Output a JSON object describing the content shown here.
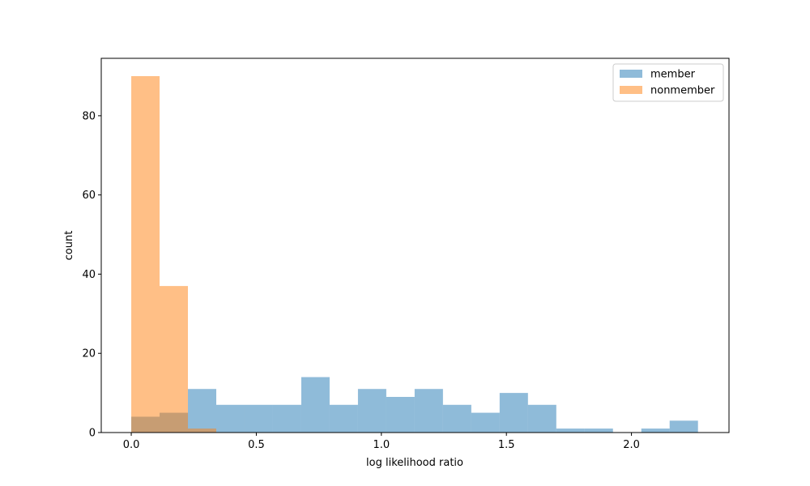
{
  "chart_data": {
    "type": "bar",
    "xlabel": "log likelihood ratio",
    "ylabel": "count",
    "xlim": [
      -0.12,
      2.39
    ],
    "ylim": [
      0,
      94.5
    ],
    "xticks": [
      {
        "value": 0.0,
        "label": "0.0"
      },
      {
        "value": 0.5,
        "label": "0.5"
      },
      {
        "value": 1.0,
        "label": "1.0"
      },
      {
        "value": 1.5,
        "label": "1.5"
      },
      {
        "value": 2.0,
        "label": "2.0"
      }
    ],
    "yticks": [
      {
        "value": 0,
        "label": "0"
      },
      {
        "value": 20,
        "label": "20"
      },
      {
        "value": 40,
        "label": "40"
      },
      {
        "value": 60,
        "label": "60"
      },
      {
        "value": 80,
        "label": "80"
      }
    ],
    "grid": false,
    "legend_position": "top-right",
    "series": [
      {
        "name": "member",
        "color": "#1f77b4",
        "opacity": 0.5,
        "bin_start": 0.0,
        "bin_width": 0.1133,
        "counts": [
          4,
          5,
          11,
          7,
          7,
          7,
          14,
          7,
          11,
          9,
          11,
          7,
          5,
          10,
          7,
          1,
          1,
          0,
          1,
          3
        ]
      },
      {
        "name": "nonmember",
        "color": "#ff7f0e",
        "opacity": 0.5,
        "bin_start": 0.0,
        "bin_width": 0.1133,
        "counts": [
          90,
          37,
          1
        ]
      }
    ]
  }
}
